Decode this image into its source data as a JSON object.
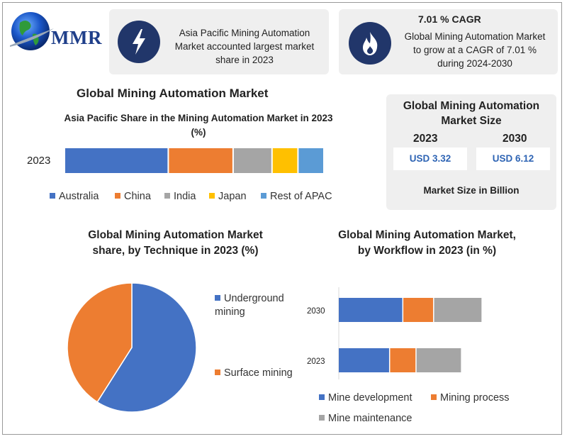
{
  "logo": {
    "text": "MMR"
  },
  "header": {
    "card1_text": "Asia Pacific Mining Automation Market accounted largest market share in 2023",
    "card1_icon": "lightning-icon",
    "card2_title": "7.01 % CAGR",
    "card2_text": "Global Mining Automation Market to grow at a CAGR of 7.01 % during 2024-2030",
    "card2_icon": "flame-icon"
  },
  "main_title": "Global Mining Automation Market",
  "market_size": {
    "title": "Global Mining Automation Market Size",
    "year1": "2023",
    "year2": "2030",
    "value1": "USD 3.32",
    "value2": "USD 6.12",
    "footer": "Market Size in Billion"
  },
  "colors": {
    "blue": "#4472c4",
    "orange": "#ed7d31",
    "gray": "#a5a5a5",
    "yellow": "#ffc000",
    "lightblue": "#5b9bd5",
    "navy": "#21366a"
  },
  "chart_data": [
    {
      "type": "bar",
      "orientation": "horizontal",
      "stacked": true,
      "title": "Asia Pacific Share in the Mining Automation Market in 2023 (%)",
      "categories": [
        "2023"
      ],
      "series": [
        {
          "name": "Australia",
          "values": [
            40
          ],
          "color": "#4472c4"
        },
        {
          "name": "China",
          "values": [
            25
          ],
          "color": "#ed7d31"
        },
        {
          "name": "India",
          "values": [
            15
          ],
          "color": "#a5a5a5"
        },
        {
          "name": "Japan",
          "values": [
            10
          ],
          "color": "#ffc000"
        },
        {
          "name": "Rest of APAC",
          "values": [
            10
          ],
          "color": "#5b9bd5"
        }
      ],
      "legend": "bottom"
    },
    {
      "type": "pie",
      "title": "Global Mining Automation Market share, by Technique in 2023  (%)",
      "slices": [
        {
          "name": "Underground mining",
          "value": 59,
          "color": "#4472c4"
        },
        {
          "name": "Surface mining",
          "value": 41,
          "color": "#ed7d31"
        }
      ],
      "legend": "right"
    },
    {
      "type": "bar",
      "orientation": "horizontal",
      "stacked": true,
      "title": "Global Mining Automation Market, by Workflow in 2023 (in %)",
      "categories": [
        "2030",
        "2023"
      ],
      "series": [
        {
          "name": "Mine development",
          "values": [
            44,
            35
          ],
          "color": "#4472c4"
        },
        {
          "name": "Mining process",
          "values": [
            21,
            18
          ],
          "color": "#ed7d31"
        },
        {
          "name": "Mine maintenance",
          "values": [
            33,
            31
          ],
          "color": "#a5a5a5"
        }
      ],
      "legend": "bottom"
    }
  ]
}
